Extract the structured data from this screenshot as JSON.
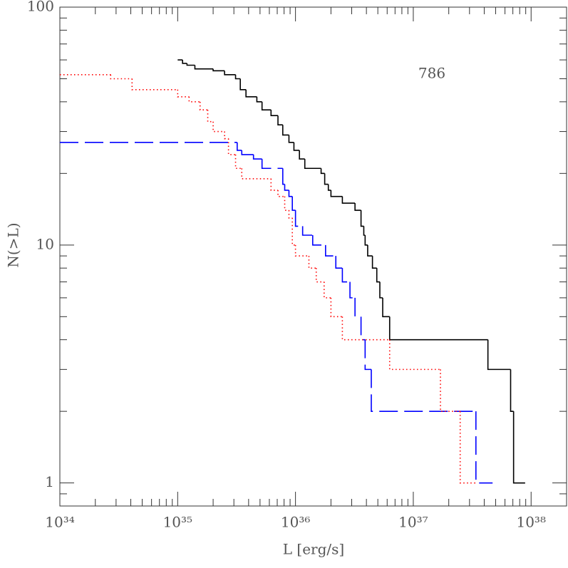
{
  "chart_data": {
    "type": "step",
    "x_label": "L [erg/s]",
    "y_label": "N(>L)",
    "annotation": "786",
    "xscale": "log",
    "yscale": "log",
    "xlim": [
      1e+34,
      2e+38
    ],
    "ylim": [
      0.8,
      100
    ],
    "xticks": [
      {
        "value": 1e+34,
        "label": "10³⁴"
      },
      {
        "value": 1e+35,
        "label": "10³⁵"
      },
      {
        "value": 1e+36,
        "label": "10³⁶"
      },
      {
        "value": 1e+37,
        "label": "10³⁷"
      },
      {
        "value": 1e+38,
        "label": "10³⁸"
      }
    ],
    "yticks": [
      1,
      10,
      100
    ],
    "series": [
      {
        "color": "#000000",
        "dash": "solid",
        "x": [
          1e+35,
          1.1e+35,
          1.2e+35,
          1.4e+35,
          2e+35,
          2.5e+35,
          3.1e+35,
          3.4e+35,
          3.8e+35,
          4.7e+35,
          5.2e+35,
          6.2e+35,
          7.1e+35,
          7.8e+35,
          8.8e+35,
          9.7e+35,
          1.08e+36,
          1.2e+36,
          1.65e+36,
          1.77e+36,
          1.9e+36,
          2e+36,
          2.5e+36,
          3.2e+36,
          3.6e+36,
          3.8e+36,
          3.9e+36,
          4.1e+36,
          4.5e+36,
          4.9e+36,
          5.2e+36,
          5.5e+36,
          6.3e+36,
          4.3e+37,
          6.7e+37,
          7.1e+37,
          8.9e+37
        ],
        "values": [
          60,
          58,
          57,
          55,
          54,
          52,
          50,
          45,
          42,
          40,
          37,
          35,
          32,
          29,
          27,
          25,
          23,
          21,
          20,
          18,
          17,
          16,
          15,
          14,
          12,
          11,
          10,
          9,
          8,
          7,
          6,
          5,
          4,
          3,
          2,
          1,
          1
        ]
      },
      {
        "color": "#0000ff",
        "dash": "dashed",
        "x": [
          1e+34,
          3.2e+35,
          3.5e+35,
          4.4e+35,
          5.2e+35,
          7.8e+35,
          8.1e+35,
          8.8e+35,
          9.4e+35,
          1e+36,
          1.15e+36,
          1.4e+36,
          1.8e+36,
          2.2e+36,
          2.5e+36,
          2.9e+36,
          3.2e+36,
          3.6e+36,
          3.9e+36,
          4.4e+36,
          3.4e+37,
          4.7e+37
        ],
        "values": [
          27,
          25,
          24,
          23,
          21,
          18,
          17,
          16,
          14,
          12,
          11,
          10,
          9,
          8,
          7,
          6,
          5,
          4,
          3,
          2,
          1,
          1
        ]
      },
      {
        "color": "#ff0000",
        "dash": "dotted",
        "x": [
          1e+34,
          2.7e+34,
          4.1e+34,
          1e+35,
          1.25e+35,
          1.55e+35,
          1.8e+35,
          2e+35,
          2.5e+35,
          2.7e+35,
          3.1e+35,
          3.5e+35,
          6.2e+35,
          7.1e+35,
          8.1e+35,
          8.8e+35,
          9.4e+35,
          1e+36,
          1.3e+36,
          1.5e+36,
          1.75e+36,
          2e+36,
          2.5e+36,
          6.3e+36,
          1.7e+37,
          2.5e+37,
          3.4e+37
        ],
        "values": [
          52,
          50,
          45,
          42,
          40,
          37,
          33,
          30,
          28,
          24,
          21,
          19,
          17,
          16,
          14,
          13,
          10,
          9,
          8,
          7,
          6,
          5,
          4,
          3,
          2,
          1,
          1
        ]
      }
    ]
  }
}
